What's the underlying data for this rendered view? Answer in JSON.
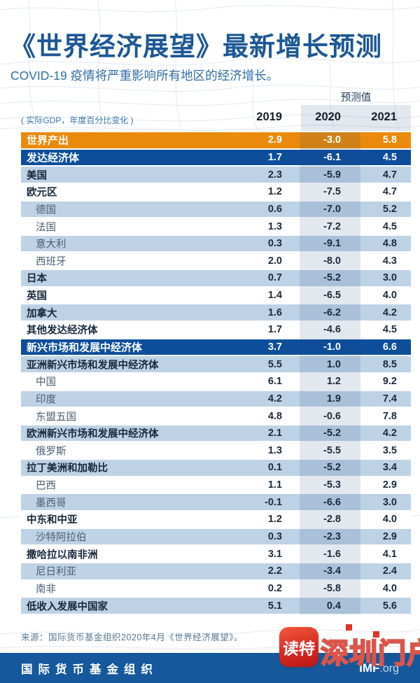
{
  "header": {
    "title": "《世界经济展望》最新增长预测",
    "subtitle": "COVID-19 疫情将严重影响所有地区的经济增长。",
    "unit_note": "( 实际GDP，年度百分比变化 )",
    "forecast_label": "预测值"
  },
  "chart_data": {
    "type": "table",
    "title": "《世界经济展望》最新增长预测",
    "subtitle": "COVID-19 疫情将严重影响所有地区的经济增长。",
    "unit": "实际GDP，年度百分比变化",
    "columns": [
      "2019",
      "2020",
      "2021"
    ],
    "forecast_columns": [
      "2020",
      "2021"
    ],
    "rows": [
      {
        "label": "世界产出",
        "level": "world",
        "bg": "orange",
        "values": [
          "2.9",
          "-3.0",
          "5.8"
        ]
      },
      {
        "label": "发达经济体",
        "level": "section",
        "bg": "blue",
        "values": [
          "1.7",
          "-6.1",
          "4.5"
        ]
      },
      {
        "label": "美国",
        "level": "main",
        "bg": "lightblue",
        "values": [
          "2.3",
          "-5.9",
          "4.7"
        ]
      },
      {
        "label": "欧元区",
        "level": "main",
        "bg": "white",
        "values": [
          "1.2",
          "-7.5",
          "4.7"
        ]
      },
      {
        "label": "德国",
        "level": "sub",
        "bg": "lightblue",
        "values": [
          "0.6",
          "-7.0",
          "5.2"
        ]
      },
      {
        "label": "法国",
        "level": "sub",
        "bg": "white",
        "values": [
          "1.3",
          "-7.2",
          "4.5"
        ]
      },
      {
        "label": "意大利",
        "level": "sub",
        "bg": "lightblue",
        "values": [
          "0.3",
          "-9.1",
          "4.8"
        ]
      },
      {
        "label": "西班牙",
        "level": "sub",
        "bg": "white",
        "values": [
          "2.0",
          "-8.0",
          "4.3"
        ]
      },
      {
        "label": "日本",
        "level": "main",
        "bg": "lightblue",
        "values": [
          "0.7",
          "-5.2",
          "3.0"
        ]
      },
      {
        "label": "英国",
        "level": "main",
        "bg": "white",
        "values": [
          "1.4",
          "-6.5",
          "4.0"
        ]
      },
      {
        "label": "加拿大",
        "level": "main",
        "bg": "lightblue",
        "values": [
          "1.6",
          "-6.2",
          "4.2"
        ]
      },
      {
        "label": "其他发达经济体",
        "level": "main",
        "bg": "white",
        "values": [
          "1.7",
          "-4.6",
          "4.5"
        ]
      },
      {
        "label": "新兴市场和发展中经济体",
        "level": "section",
        "bg": "blue",
        "values": [
          "3.7",
          "-1.0",
          "6.6"
        ]
      },
      {
        "label": "亚洲新兴市场和发展中经济体",
        "level": "main",
        "bg": "lightblue",
        "values": [
          "5.5",
          "1.0",
          "8.5"
        ]
      },
      {
        "label": "中国",
        "level": "sub",
        "bg": "white",
        "values": [
          "6.1",
          "1.2",
          "9.2"
        ]
      },
      {
        "label": "印度",
        "level": "sub",
        "bg": "lightblue",
        "values": [
          "4.2",
          "1.9",
          "7.4"
        ]
      },
      {
        "label": "东盟五国",
        "level": "sub",
        "bg": "white",
        "values": [
          "4.8",
          "-0.6",
          "7.8"
        ]
      },
      {
        "label": "欧洲新兴市场和发展中经济体",
        "level": "main",
        "bg": "lightblue",
        "values": [
          "2.1",
          "-5.2",
          "4.2"
        ]
      },
      {
        "label": "俄罗斯",
        "level": "sub",
        "bg": "white",
        "values": [
          "1.3",
          "-5.5",
          "3.5"
        ]
      },
      {
        "label": "拉丁美洲和加勒比",
        "level": "main",
        "bg": "lightblue",
        "values": [
          "0.1",
          "-5.2",
          "3.4"
        ]
      },
      {
        "label": "巴西",
        "level": "sub",
        "bg": "white",
        "values": [
          "1.1",
          "-5.3",
          "2.9"
        ]
      },
      {
        "label": "墨西哥",
        "level": "sub",
        "bg": "lightblue",
        "values": [
          "-0.1",
          "-6.6",
          "3.0"
        ]
      },
      {
        "label": "中东和中亚",
        "level": "main",
        "bg": "white",
        "values": [
          "1.2",
          "-2.8",
          "4.0"
        ]
      },
      {
        "label": "沙特阿拉伯",
        "level": "sub",
        "bg": "lightblue",
        "values": [
          "0.3",
          "-2.3",
          "2.9"
        ]
      },
      {
        "label": "撒哈拉以南非洲",
        "level": "main",
        "bg": "white",
        "values": [
          "3.1",
          "-1.6",
          "4.1"
        ]
      },
      {
        "label": "尼日利亚",
        "level": "sub",
        "bg": "lightblue",
        "values": [
          "2.2",
          "-3.4",
          "2.4"
        ]
      },
      {
        "label": "南非",
        "level": "sub",
        "bg": "white",
        "values": [
          "0.2",
          "-5.8",
          "4.0"
        ]
      },
      {
        "label": "低收入发展中国家",
        "level": "main",
        "bg": "lightblue",
        "values": [
          "5.1",
          "0.4",
          "5.6"
        ]
      }
    ]
  },
  "source": "来源：国际货币基金组织2020年4月《世界经济展望》。",
  "footer": {
    "org": "国际货币基金组织",
    "site_bold": "IMF",
    "site_suffix": ".org"
  },
  "watermark": {
    "icon": "读特",
    "text": "深圳门户"
  },
  "colors": {
    "title_blue": "#1d5795",
    "world_orange": "#ea8a0c",
    "section_blue": "#0d4e9b",
    "row_lightblue": "#bed2e6",
    "forecast_shade": "rgba(22,66,125,0.12)",
    "footer_blue": "#15589c",
    "watermark_red": "#d9554b"
  }
}
